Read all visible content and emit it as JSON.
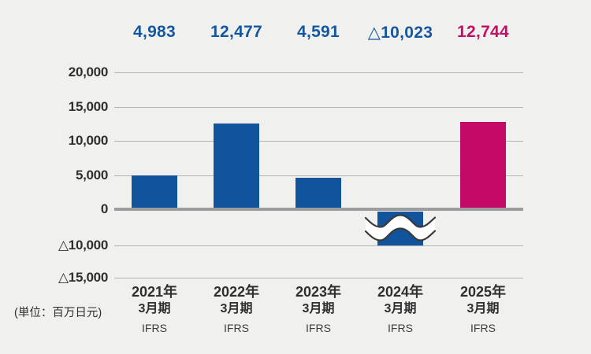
{
  "unit_label": "(単位：百万日元)",
  "chart_data": {
    "type": "bar",
    "title": "",
    "unit": "百万日元",
    "categories": [
      {
        "year": "2021年",
        "period": "3月期",
        "standard": "IFRS"
      },
      {
        "year": "2022年",
        "period": "3月期",
        "standard": "IFRS"
      },
      {
        "year": "2023年",
        "period": "3月期",
        "standard": "IFRS"
      },
      {
        "year": "2024年",
        "period": "3月期",
        "standard": "IFRS"
      },
      {
        "year": "2025年",
        "period": "3月期",
        "standard": "IFRS"
      }
    ],
    "values": [
      4983,
      12477,
      4591,
      -10023,
      12744
    ],
    "value_labels": [
      "4,983",
      "12,477",
      "4,591",
      "△10,023",
      "12,744"
    ],
    "y_ticks": [
      {
        "label": "20,000",
        "value": 20000
      },
      {
        "label": "15,000",
        "value": 15000
      },
      {
        "label": "10,000",
        "value": 10000
      },
      {
        "label": "5,000",
        "value": 5000
      },
      {
        "label": "0",
        "value": 0
      },
      {
        "label": "△10,000",
        "value": -10000
      },
      {
        "label": "△15,000",
        "value": -15000
      }
    ],
    "ylim": [
      -15000,
      20000
    ],
    "grid": true,
    "legend": false,
    "axis_break": {
      "present": true,
      "between": [
        0,
        -10000
      ],
      "style": "double-wave"
    },
    "highlight_index": 4,
    "colors": {
      "bar_blue": "#12549b",
      "bar_magenta": "#c40a66",
      "label_blue": "#15579f",
      "label_magenta": "#c60e66",
      "gridline": "#b3b3b1",
      "zero_line": "#9d9d9d",
      "axis_text": "#2f2f2f",
      "standard_text": "#3d3d3d",
      "wave_stroke": "#3a3a3a",
      "wave_fill": "#ffffff",
      "background": "#f0f0ee"
    }
  }
}
